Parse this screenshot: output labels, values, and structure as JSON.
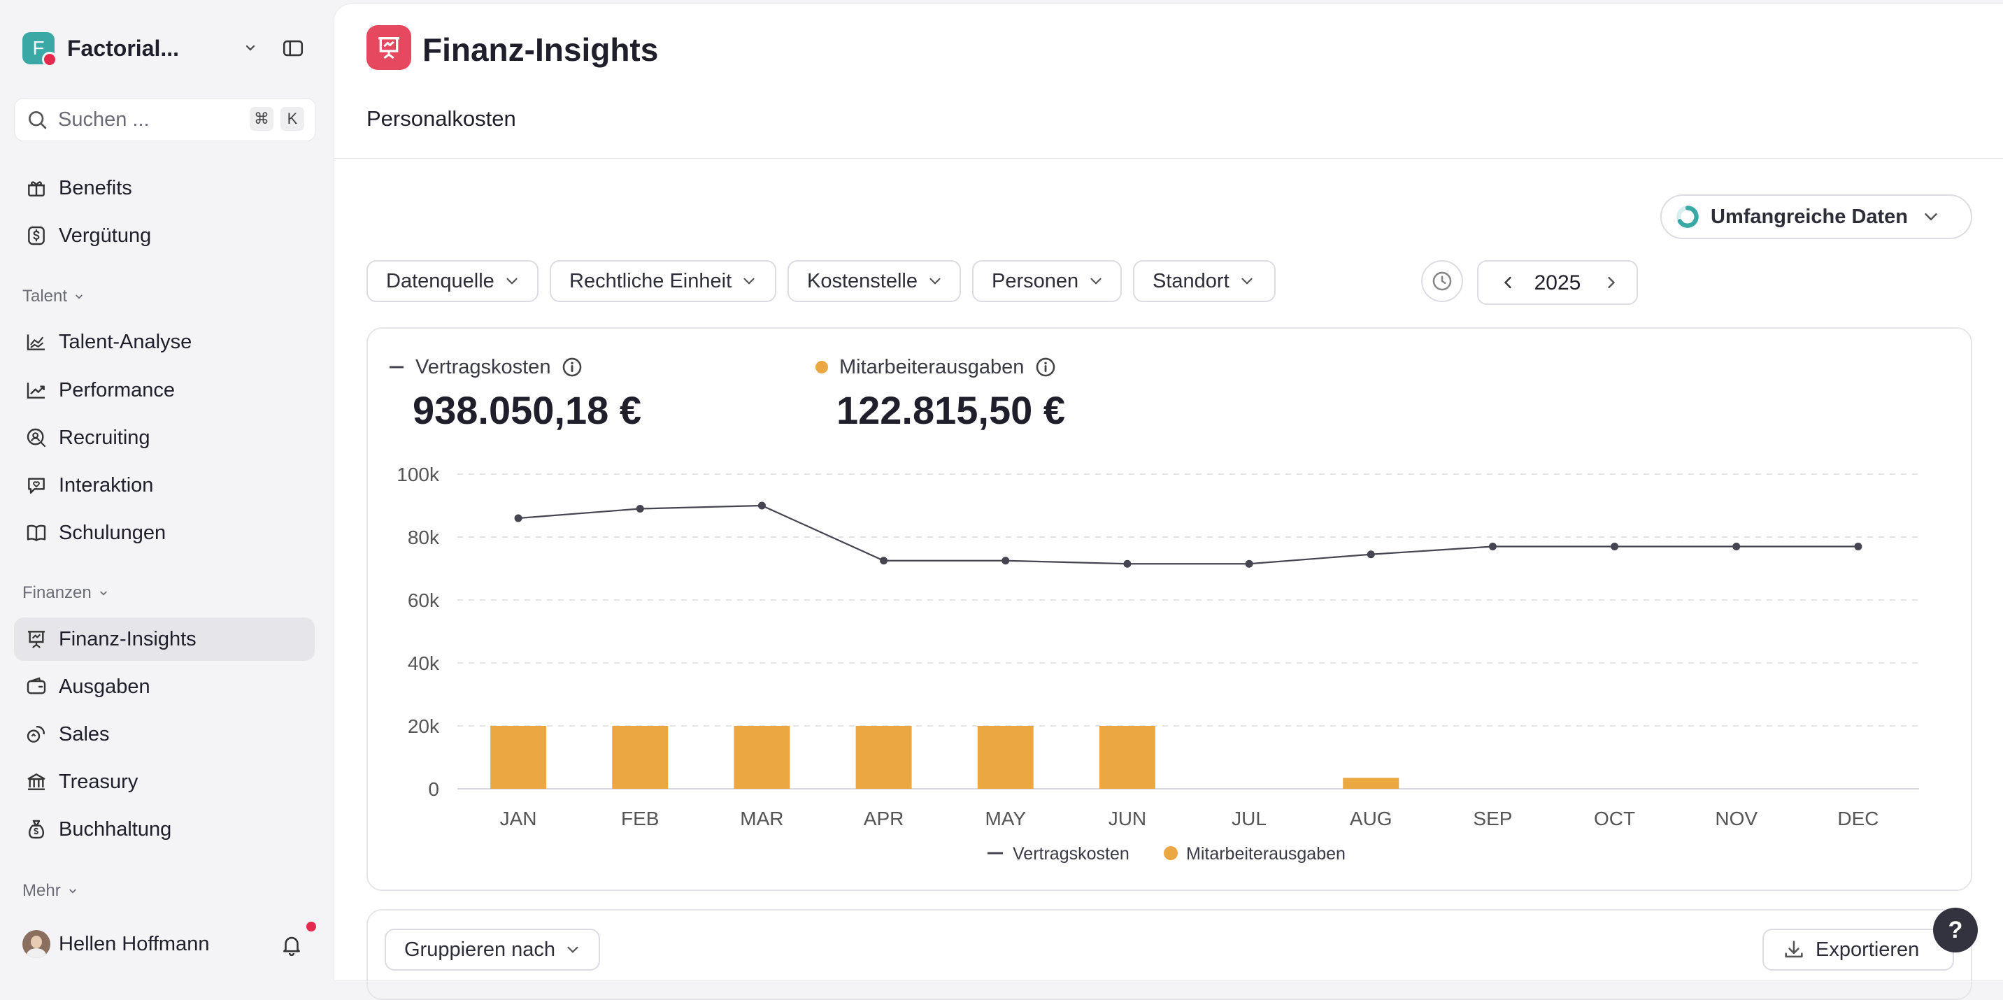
{
  "workspace": {
    "name": "Factorial...",
    "logo_letter": "F"
  },
  "search": {
    "placeholder": "Suchen ...",
    "shortcut_1": "⌘",
    "shortcut_2": "K"
  },
  "sidebar": {
    "top_items": [
      {
        "label": "Benefits",
        "icon": "gift-icon"
      },
      {
        "label": "Vergütung",
        "icon": "money-icon"
      }
    ],
    "talent": {
      "label": "Talent",
      "items": [
        {
          "label": "Talent-Analyse",
          "icon": "area-chart-icon"
        },
        {
          "label": "Performance",
          "icon": "trend-icon"
        },
        {
          "label": "Recruiting",
          "icon": "search-person-icon"
        },
        {
          "label": "Interaktion",
          "icon": "chat-heart-icon"
        },
        {
          "label": "Schulungen",
          "icon": "book-icon"
        }
      ]
    },
    "finanzen": {
      "label": "Finanzen",
      "items": [
        {
          "label": "Finanz-Insights",
          "icon": "presentation-icon",
          "active": true
        },
        {
          "label": "Ausgaben",
          "icon": "wallet-icon"
        },
        {
          "label": "Sales",
          "icon": "sales-icon"
        },
        {
          "label": "Treasury",
          "icon": "bank-icon"
        },
        {
          "label": "Buchhaltung",
          "icon": "money-bag-icon"
        }
      ]
    },
    "mehr": {
      "label": "Mehr"
    }
  },
  "user": {
    "name": "Hellen Hoffmann"
  },
  "header": {
    "title": "Finanz-Insights",
    "subtab": "Personalkosten"
  },
  "toolbar": {
    "data_mode": "Umfangreiche Daten",
    "filters": [
      "Datenquelle",
      "Rechtliche Einheit",
      "Kostenstelle",
      "Personen",
      "Standort"
    ],
    "year": "2025"
  },
  "metrics": {
    "vertragskosten": {
      "label": "Vertragskosten",
      "value": "938.050,18 €"
    },
    "mitarbeiterausgaben": {
      "label": "Mitarbeiterausgaben",
      "value": "122.815,50 €"
    }
  },
  "chart_data": {
    "type": "bar",
    "categories": [
      "JAN",
      "FEB",
      "MAR",
      "APR",
      "MAY",
      "JUN",
      "JUL",
      "AUG",
      "SEP",
      "OCT",
      "NOV",
      "DEC"
    ],
    "series": [
      {
        "name": "Vertragskosten",
        "type": "line",
        "color": "#454552",
        "values": [
          86000,
          89000,
          90000,
          72500,
          72500,
          71500,
          71500,
          74500,
          77000,
          77000,
          77000,
          77000
        ]
      },
      {
        "name": "Mitarbeiterausgaben",
        "type": "bar",
        "color": "#eba842",
        "values": [
          20000,
          20000,
          20000,
          20000,
          20000,
          20000,
          0,
          3500,
          0,
          0,
          0,
          0
        ]
      }
    ],
    "y_ticks": [
      "0",
      "20k",
      "40k",
      "60k",
      "80k",
      "100k"
    ],
    "ylim": [
      0,
      100000
    ],
    "grid": true,
    "legend": "bottom-center"
  },
  "bottom_toolbar": {
    "group_by": "Gruppieren nach",
    "export": "Exportieren"
  },
  "help": {
    "label": "?"
  },
  "colors": {
    "accent": "#e5485f",
    "bar": "#eba842",
    "line": "#454552"
  }
}
